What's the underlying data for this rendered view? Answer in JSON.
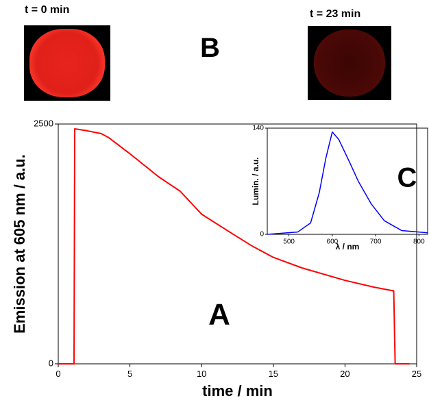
{
  "chart_data": [
    {
      "type": "line",
      "xlabel": "time / min",
      "ylabel": "Emission at 605 nm / a.u.",
      "panel_label": "A",
      "series": [
        {
          "color": "#ff0000",
          "x": [
            0,
            1.1,
            1.15,
            2,
            3,
            3.5,
            5,
            7,
            8.5,
            10,
            12,
            13.5,
            15,
            17,
            20,
            22,
            23.4,
            23.5,
            24.5
          ],
          "values": [
            0,
            0,
            2450,
            2430,
            2400,
            2360,
            2190,
            1950,
            1800,
            1560,
            1370,
            1230,
            1110,
            1000,
            870,
            800,
            760,
            0,
            0
          ]
        }
      ],
      "xlim": [
        0,
        25
      ],
      "xticks": [
        0,
        5,
        10,
        15,
        20,
        25
      ],
      "ylim": [
        0,
        2500
      ],
      "yticks": [
        0,
        2500
      ]
    },
    {
      "type": "line",
      "xlabel": "λ / nm",
      "ylabel": "Lumin. / a.u.",
      "panel_label": "C",
      "series": [
        {
          "color": "#0000ff",
          "x": [
            450,
            520,
            550,
            570,
            585,
            600,
            615,
            640,
            660,
            690,
            720,
            760,
            820
          ],
          "values": [
            0,
            3,
            15,
            55,
            100,
            135,
            125,
            95,
            70,
            40,
            18,
            5,
            2
          ]
        }
      ],
      "xlim": [
        450,
        820
      ],
      "xticks": [
        500,
        600,
        700,
        800
      ],
      "ylim": [
        0,
        140
      ],
      "yticks": [
        0,
        140
      ]
    }
  ],
  "images": {
    "panel_label": "B",
    "items": [
      {
        "label": "t = 0 min"
      },
      {
        "label": "t = 23 min"
      }
    ]
  }
}
